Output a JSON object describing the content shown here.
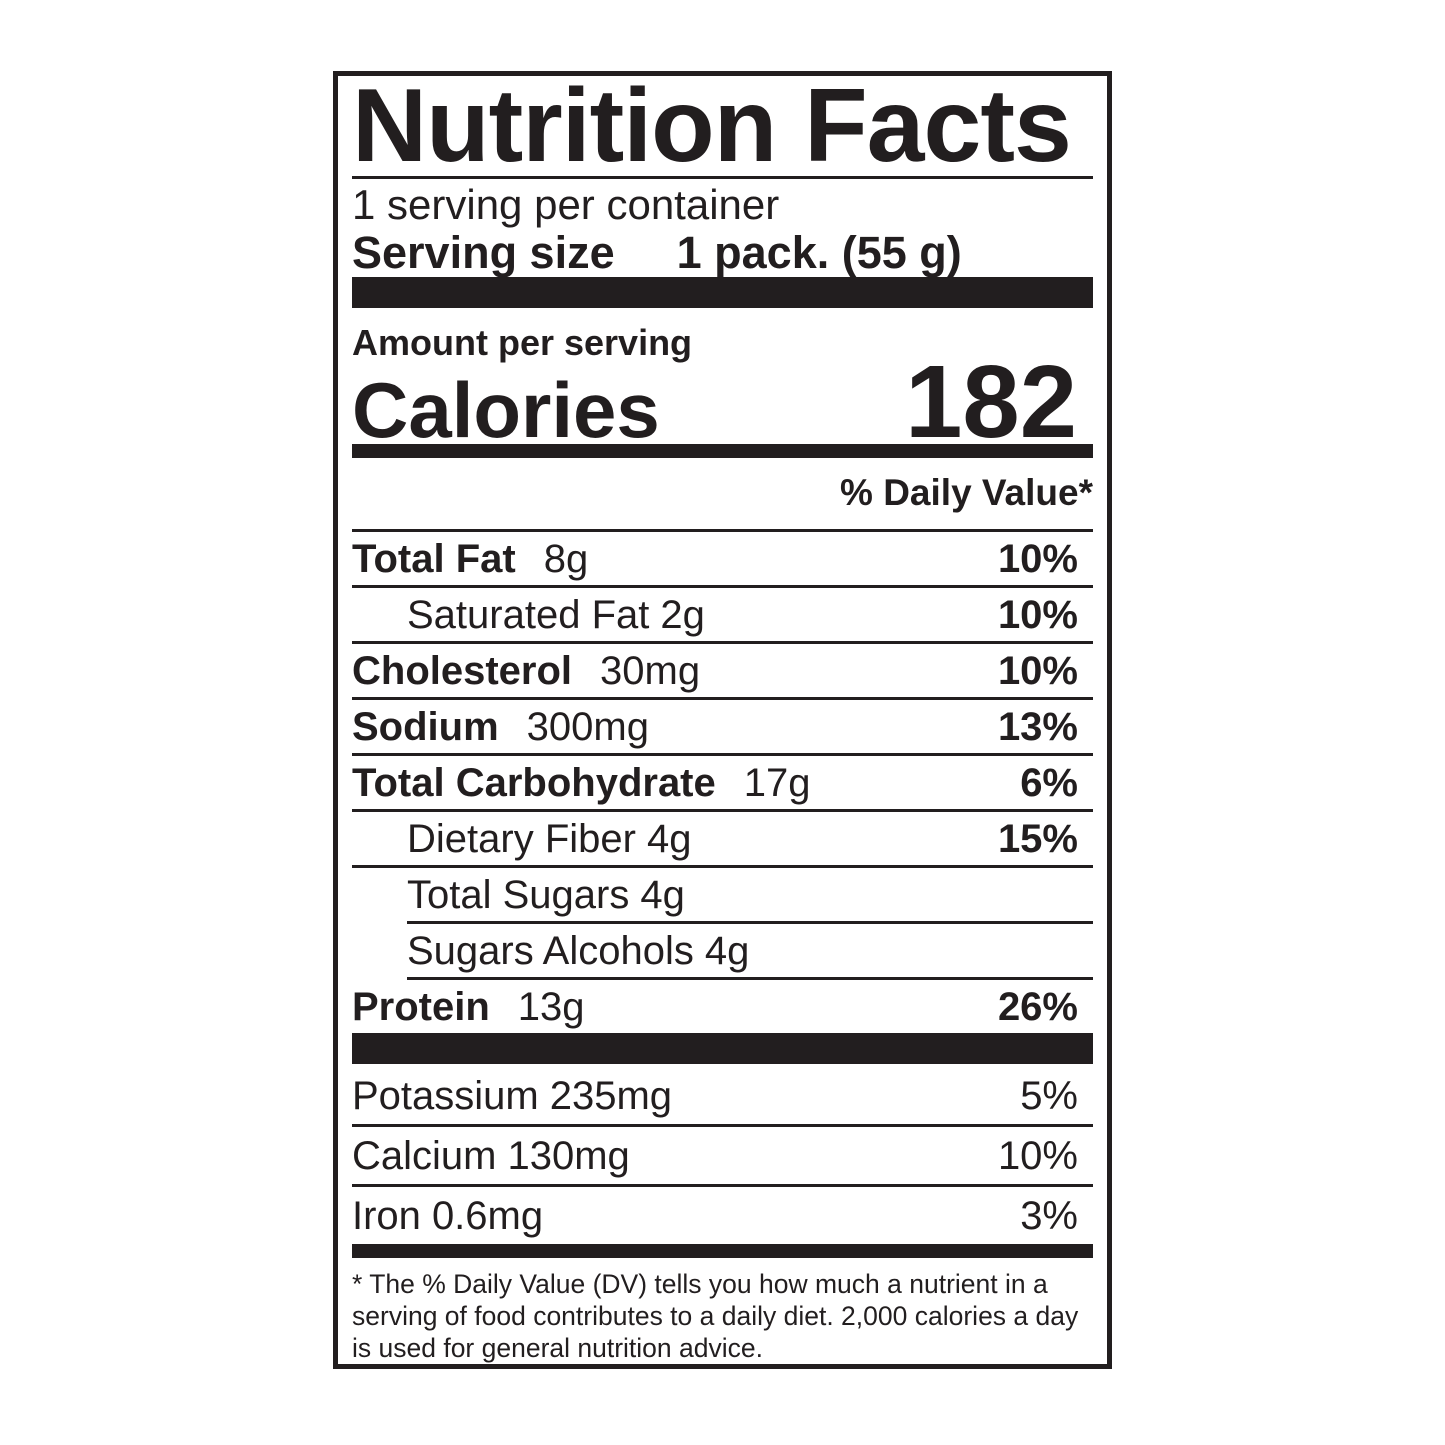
{
  "label": {
    "title": "Nutrition Facts",
    "servings_per_container": "1 serving per container",
    "serving_size": {
      "label": "Serving size",
      "value": "1 pack. (55 g)"
    },
    "amount_per_serving": "Amount per serving",
    "calories": {
      "label": "Calories",
      "value": "182"
    },
    "daily_value_header": "% Daily Value*",
    "nutrients": [
      {
        "name": "Total Fat",
        "amount": "8g",
        "dv": "10%"
      },
      {
        "name": "Saturated Fat",
        "amount": "2g",
        "dv": "10%"
      },
      {
        "name": "Cholesterol",
        "amount": "30mg",
        "dv": "10%"
      },
      {
        "name": "Sodium",
        "amount": "300mg",
        "dv": "13%"
      },
      {
        "name": "Total Carbohydrate",
        "amount": "17g",
        "dv": "6%"
      },
      {
        "name": "Dietary Fiber",
        "amount": "4g",
        "dv": "15%"
      },
      {
        "name": "Total Sugars",
        "amount": "4g",
        "dv": ""
      },
      {
        "name": "Sugars Alcohols",
        "amount": "4g",
        "dv": ""
      },
      {
        "name": "Protein",
        "amount": "13g",
        "dv": "26%"
      }
    ],
    "minerals": [
      {
        "name": "Potassium",
        "amount": "235mg",
        "dv": "5%"
      },
      {
        "name": "Calcium",
        "amount": "130mg",
        "dv": "10%"
      },
      {
        "name": "Iron",
        "amount": "0.6mg",
        "dv": "3%"
      }
    ],
    "footnote_lines": [
      "* The % Daily Value (DV) tells you how much a nutrient in a",
      "serving of food contributes to a daily diet. 2,000 calories a day",
      "is used for general nutrition advice."
    ],
    "colors": {
      "text": "#221e1f",
      "rule": "#221e1f",
      "background": "#ffffff"
    }
  }
}
